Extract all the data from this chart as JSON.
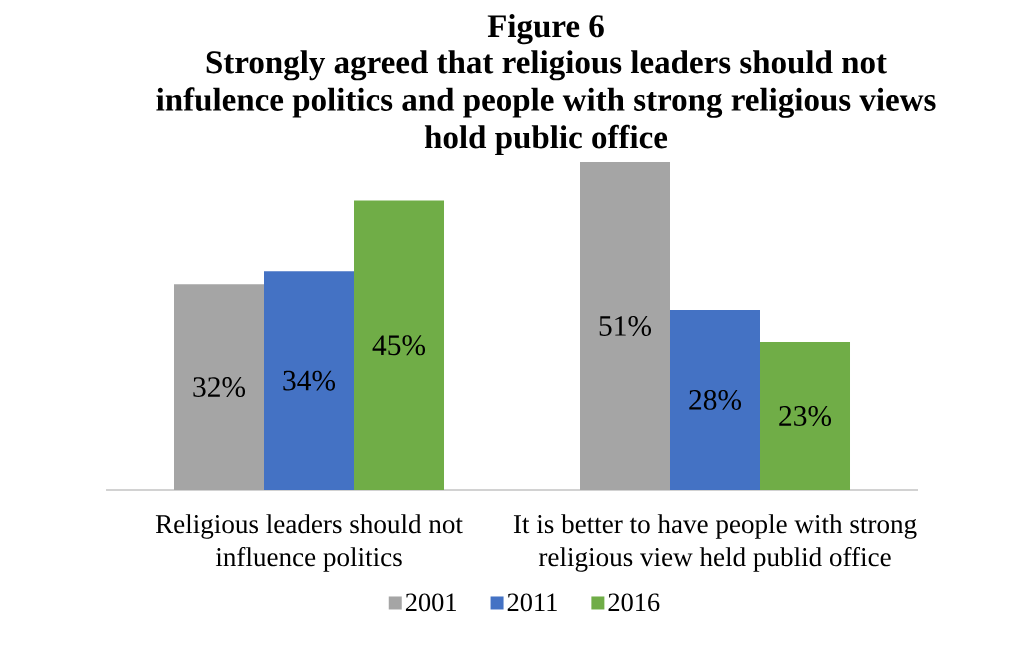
{
  "chart_data": {
    "type": "bar",
    "title": "Figure 6",
    "subtitle": "Strongly agreed that religious leaders should not infulence politics and people with strong religious views hold public office",
    "categories": [
      "Religious leaders should not influence politics",
      "It is better to have people with strong religious view held publid office"
    ],
    "series": [
      {
        "name": "2001",
        "color": "#a5a5a5",
        "values": [
          32,
          51
        ],
        "value_labels": [
          "32%",
          "51%"
        ]
      },
      {
        "name": "2011",
        "color": "#4472c4",
        "values": [
          34,
          28
        ],
        "value_labels": [
          "34%",
          "28%"
        ]
      },
      {
        "name": "2016",
        "color": "#70ad47",
        "values": [
          45,
          23
        ],
        "value_labels": [
          "45%",
          "23%"
        ]
      }
    ],
    "legend": "bottom"
  }
}
